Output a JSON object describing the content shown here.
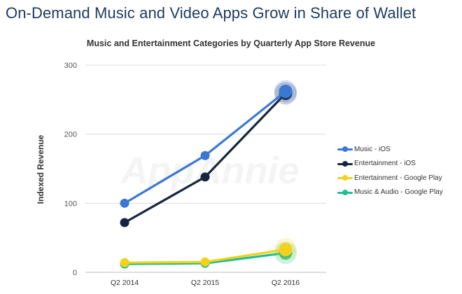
{
  "headline": "On-Demand Music and Video Apps Grow in Share of Wallet",
  "watermark": "AppAnnie",
  "chart_data": {
    "type": "line",
    "title": "Music and Entertainment Categories by Quarterly App Store Revenue",
    "xlabel": "",
    "ylabel": "Indexed Revenue",
    "categories": [
      "Q2 2014",
      "Q2 2015",
      "Q2 2016"
    ],
    "ylim": [
      0,
      300
    ],
    "yticks": [
      0,
      100,
      200,
      300
    ],
    "grid": true,
    "legend_position": "right",
    "series": [
      {
        "name": "Music - iOS",
        "color": "#3a78d4",
        "values": [
          100,
          169,
          262
        ]
      },
      {
        "name": "Entertainment - iOS",
        "color": "#16263f",
        "values": [
          72,
          138,
          259
        ]
      },
      {
        "name": "Entertainment - Google Play",
        "color": "#f2d21b",
        "values": [
          14,
          15,
          33
        ]
      },
      {
        "name": "Music & Audio - Google Play",
        "color": "#1fbf95",
        "values": [
          12,
          13,
          28
        ]
      }
    ]
  }
}
